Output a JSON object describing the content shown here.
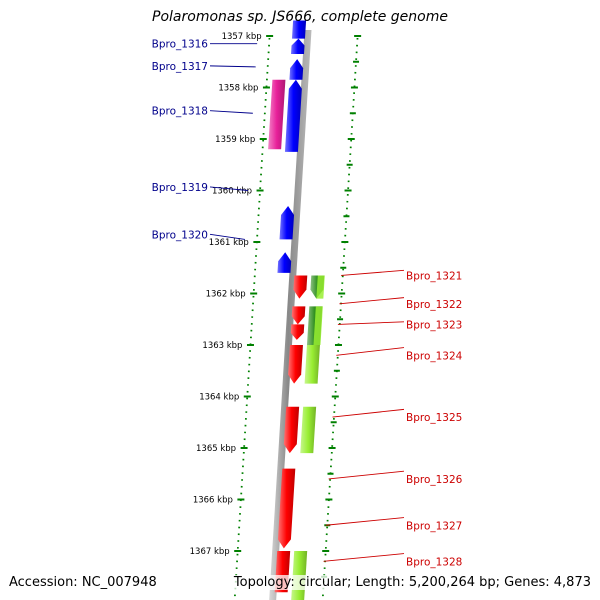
{
  "title": "Polaromonas sp. JS666, complete genome",
  "accession": "Accession: NC_007948",
  "topology": "Topology: circular; Length: 5,200,264 bp; Genes: 4,873",
  "colors": {
    "backbone": "#888888",
    "forward_cds": "#0000ff",
    "forward_rna": "#e8209a",
    "reverse_cds": "#ff0000",
    "reverse_other": "#99ee33",
    "reverse_other_dark": "#2f8f1f",
    "grid": "#008000",
    "label_forward": "#00008b",
    "label_reverse": "#cc0000"
  },
  "kbp_ticks": [
    {
      "kbp": 1357,
      "label": "1357 kbp"
    },
    {
      "kbp": 1358,
      "label": "1358 kbp"
    },
    {
      "kbp": 1359,
      "label": "1359 kbp"
    },
    {
      "kbp": 1360,
      "label": "1360 kbp"
    },
    {
      "kbp": 1361,
      "label": "1361 kbp"
    },
    {
      "kbp": 1362,
      "label": "1362 kbp"
    },
    {
      "kbp": 1363,
      "label": "1363 kbp"
    },
    {
      "kbp": 1364,
      "label": "1364 kbp"
    },
    {
      "kbp": 1365,
      "label": "1365 kbp"
    },
    {
      "kbp": 1366,
      "label": "1366 kbp"
    },
    {
      "kbp": 1367,
      "label": "1367 kbp"
    }
  ],
  "forward_features": [
    {
      "start": 1356.7,
      "end": 1357.05,
      "track": "cds",
      "arrow": false,
      "color_key": "forward_cds"
    },
    {
      "start": 1357.05,
      "end": 1357.35,
      "track": "cds",
      "arrow": true,
      "color_key": "forward_cds"
    },
    {
      "start": 1357.45,
      "end": 1357.85,
      "track": "cds",
      "arrow": true,
      "color_key": "forward_cds"
    },
    {
      "start": 1357.85,
      "end": 1359.25,
      "track": "cds",
      "arrow": true,
      "color_key": "forward_cds"
    },
    {
      "start": 1357.85,
      "end": 1359.2,
      "track": "rna",
      "arrow": false,
      "color_key": "forward_rna"
    },
    {
      "start": 1360.3,
      "end": 1360.95,
      "track": "cds",
      "arrow": true,
      "color_key": "forward_cds"
    },
    {
      "start": 1361.2,
      "end": 1361.6,
      "track": "cds",
      "arrow": true,
      "color_key": "forward_cds"
    }
  ],
  "reverse_features": [
    {
      "start": 1361.65,
      "end": 1362.1,
      "track": "cds",
      "arrow": true,
      "color_key": "reverse_cds"
    },
    {
      "start": 1361.65,
      "end": 1362.1,
      "track": "other",
      "arrow": true,
      "color_key": "reverse_other_dark"
    },
    {
      "start": 1362.25,
      "end": 1362.6,
      "track": "cds",
      "arrow": true,
      "color_key": "reverse_cds"
    },
    {
      "start": 1362.6,
      "end": 1362.9,
      "track": "cds",
      "arrow": true,
      "color_key": "reverse_cds"
    },
    {
      "start": 1362.25,
      "end": 1363.0,
      "track": "other",
      "arrow": false,
      "color_key": "reverse_other_dark"
    },
    {
      "start": 1363.0,
      "end": 1363.75,
      "track": "cds",
      "arrow": true,
      "color_key": "reverse_cds"
    },
    {
      "start": 1363.0,
      "end": 1363.75,
      "track": "other",
      "arrow": false,
      "color_key": "reverse_other"
    },
    {
      "start": 1364.2,
      "end": 1365.1,
      "track": "cds",
      "arrow": true,
      "color_key": "reverse_cds"
    },
    {
      "start": 1364.2,
      "end": 1365.1,
      "track": "other",
      "arrow": false,
      "color_key": "reverse_other"
    },
    {
      "start": 1365.4,
      "end": 1366.95,
      "track": "cds",
      "arrow": true,
      "color_key": "reverse_cds"
    },
    {
      "start": 1367.0,
      "end": 1367.8,
      "track": "cds",
      "arrow": false,
      "color_key": "reverse_cds"
    },
    {
      "start": 1367.0,
      "end": 1368.2,
      "track": "other",
      "arrow": false,
      "color_key": "reverse_other"
    },
    {
      "start": 1356.7,
      "end": 1357.05,
      "track": "cds",
      "arrow": false,
      "color_key": "backbone"
    }
  ],
  "gene_labels": [
    {
      "text": "Bpro_1316",
      "kbp": 1357.15,
      "side": "left",
      "label_kbp": 1357.15
    },
    {
      "text": "Bpro_1317",
      "kbp": 1357.6,
      "side": "left",
      "label_kbp": 1357.58
    },
    {
      "text": "Bpro_1318",
      "kbp": 1358.5,
      "side": "left",
      "label_kbp": 1358.45
    },
    {
      "text": "Bpro_1319",
      "kbp": 1360.0,
      "side": "left",
      "label_kbp": 1359.93
    },
    {
      "text": "Bpro_1320",
      "kbp": 1360.95,
      "side": "left",
      "label_kbp": 1360.85
    },
    {
      "text": "Bpro_1321",
      "kbp": 1361.55,
      "side": "right",
      "label_kbp": 1361.65
    },
    {
      "text": "Bpro_1322",
      "kbp": 1362.08,
      "side": "right",
      "label_kbp": 1362.2
    },
    {
      "text": "Bpro_1323",
      "kbp": 1362.55,
      "side": "right",
      "label_kbp": 1362.6
    },
    {
      "text": "Bpro_1324",
      "kbp": 1363.05,
      "side": "right",
      "label_kbp": 1363.2
    },
    {
      "text": "Bpro_1325",
      "kbp": 1364.25,
      "side": "right",
      "label_kbp": 1364.4
    },
    {
      "text": "Bpro_1326",
      "kbp": 1365.45,
      "side": "right",
      "label_kbp": 1365.6
    },
    {
      "text": "Bpro_1327",
      "kbp": 1366.35,
      "side": "right",
      "label_kbp": 1366.5
    },
    {
      "text": "Bpro_1328",
      "kbp": 1367.05,
      "side": "right",
      "label_kbp": 1367.2
    }
  ]
}
